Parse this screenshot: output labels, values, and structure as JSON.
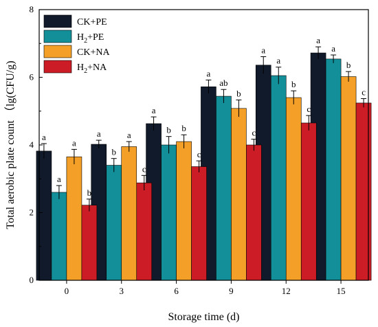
{
  "chart_data": {
    "type": "bar",
    "title": "",
    "xlabel": "Storage time (d)",
    "ylabel": "Total aerobic plate count （lg(CFU/g)",
    "categories": [
      "0",
      "3",
      "6",
      "9",
      "12",
      "15"
    ],
    "ylim": [
      0,
      8
    ],
    "yticks": [
      "0",
      "2",
      "4",
      "6",
      "8"
    ],
    "legend_placement": "top-left",
    "grid": false,
    "series": [
      {
        "name": "CK+PE",
        "color": "#111a2b",
        "values": [
          3.82,
          4.02,
          4.63,
          5.72,
          6.36,
          6.72
        ],
        "errors": [
          0.22,
          0.12,
          0.2,
          0.2,
          0.25,
          0.18
        ],
        "labels": [
          "a",
          "a",
          "a",
          "a",
          "a",
          "a"
        ]
      },
      {
        "name": "H2+PE",
        "name_main": "H",
        "name_sub": "2",
        "name_rest": "+PE",
        "color": "#138f99",
        "values": [
          2.6,
          3.4,
          4.0,
          5.44,
          6.05,
          6.54
        ],
        "errors": [
          0.2,
          0.2,
          0.25,
          0.2,
          0.25,
          0.12
        ],
        "labels": [
          "a",
          "b",
          "b",
          "ab",
          "a",
          "a"
        ]
      },
      {
        "name": "CK+NA",
        "color": "#f4a028",
        "values": [
          3.65,
          3.95,
          4.1,
          5.08,
          5.4,
          6.02
        ],
        "errors": [
          0.22,
          0.15,
          0.2,
          0.25,
          0.2,
          0.15
        ],
        "labels": [
          "a",
          "a",
          "b",
          "b",
          "b",
          "b"
        ]
      },
      {
        "name": "H2+NA",
        "name_main": "H",
        "name_sub": "2",
        "name_rest": "+NA",
        "color": "#cc1c25",
        "values": [
          2.22,
          2.88,
          3.36,
          4.0,
          4.65,
          5.24
        ],
        "errors": [
          0.18,
          0.22,
          0.17,
          0.17,
          0.22,
          0.13
        ],
        "labels": [
          "b",
          "c",
          "c",
          "c",
          "c",
          "c"
        ]
      }
    ]
  }
}
